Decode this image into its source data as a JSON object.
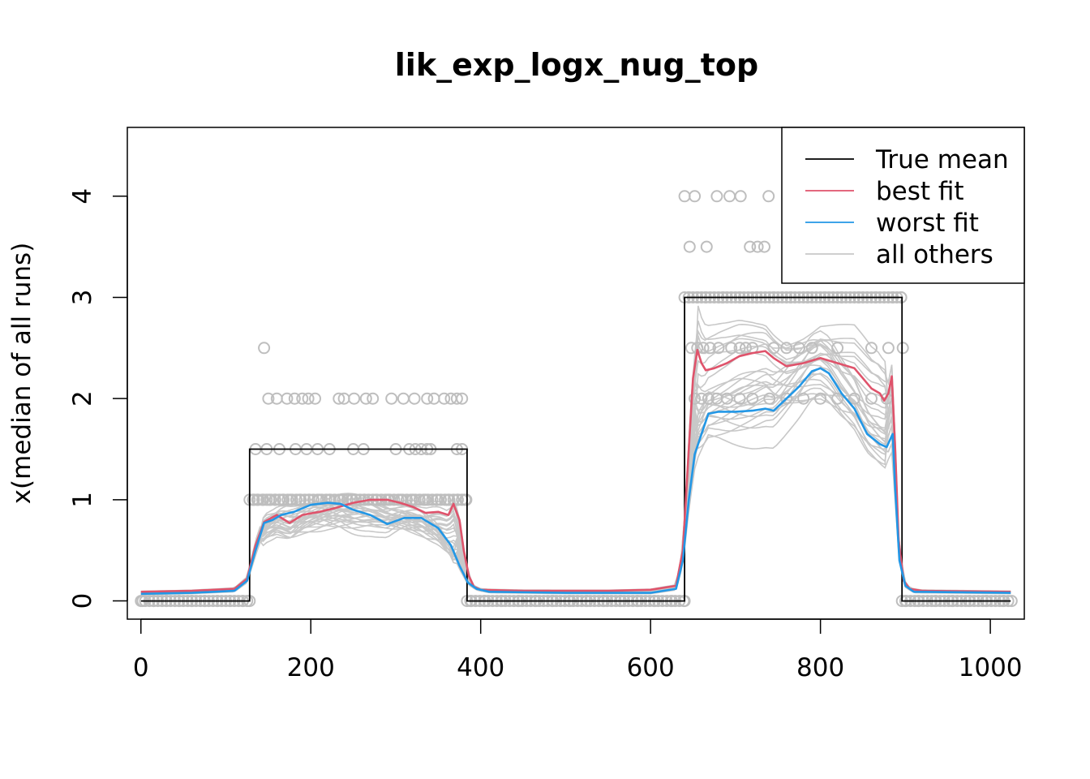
{
  "chart_data": {
    "type": "line",
    "title": "lik_exp_logx_nug_top",
    "xlabel": "",
    "ylabel": "x(median of all runs)",
    "xlim": [
      -16,
      1040
    ],
    "ylim": [
      -0.18,
      4.68
    ],
    "x_ticks": [
      0,
      200,
      400,
      600,
      800,
      1000
    ],
    "y_ticks": [
      0,
      1,
      2,
      3,
      4
    ],
    "legend_position": "top-right",
    "colors": {
      "true_mean": "#000000",
      "best_fit": "#DF536B",
      "worst_fit": "#2297E6",
      "all_others": "#C8C8C8",
      "points": "#BEBEBE"
    },
    "legend": [
      {
        "label": "True mean",
        "color": "#000000"
      },
      {
        "label": "best fit",
        "color": "#DF536B"
      },
      {
        "label": "worst fit",
        "color": "#2297E6"
      },
      {
        "label": "all others",
        "color": "#C8C8C8"
      }
    ],
    "true_mean": {
      "name": "True mean",
      "x": [
        0,
        128,
        128,
        384,
        384,
        640,
        640,
        896,
        896,
        1024
      ],
      "y": [
        0,
        0,
        1.5,
        1.5,
        0,
        0,
        3,
        3,
        0,
        0
      ]
    },
    "best_fit": {
      "name": "best fit",
      "x": [
        0,
        60,
        110,
        125,
        135,
        145,
        160,
        175,
        190,
        210,
        230,
        250,
        270,
        290,
        305,
        320,
        335,
        350,
        362,
        368,
        375,
        380,
        386,
        392,
        400,
        450,
        500,
        550,
        600,
        630,
        638,
        645,
        650,
        655,
        660,
        665,
        675,
        690,
        705,
        720,
        735,
        745,
        760,
        780,
        800,
        820,
        840,
        850,
        860,
        870,
        875,
        880,
        884,
        888,
        892,
        898,
        905,
        920,
        1024
      ],
      "y": [
        0.09,
        0.1,
        0.12,
        0.22,
        0.55,
        0.78,
        0.85,
        0.77,
        0.85,
        0.88,
        0.92,
        0.97,
        1.0,
        1.0,
        0.97,
        0.93,
        0.87,
        0.88,
        0.85,
        0.96,
        0.8,
        0.5,
        0.25,
        0.14,
        0.11,
        0.1,
        0.1,
        0.1,
        0.11,
        0.15,
        0.5,
        1.5,
        2.2,
        2.48,
        2.35,
        2.28,
        2.3,
        2.35,
        2.42,
        2.45,
        2.47,
        2.4,
        2.32,
        2.35,
        2.4,
        2.35,
        2.3,
        2.2,
        2.1,
        2.05,
        1.98,
        2.05,
        2.22,
        1.5,
        0.6,
        0.2,
        0.12,
        0.1,
        0.09
      ]
    },
    "worst_fit": {
      "name": "worst fit",
      "x": [
        0,
        60,
        110,
        125,
        135,
        145,
        155,
        165,
        180,
        200,
        220,
        235,
        250,
        270,
        290,
        310,
        330,
        350,
        365,
        375,
        385,
        395,
        410,
        500,
        600,
        630,
        638,
        645,
        652,
        660,
        668,
        680,
        700,
        720,
        735,
        745,
        760,
        775,
        790,
        800,
        810,
        825,
        840,
        855,
        870,
        878,
        885,
        888,
        893,
        900,
        910,
        1024
      ],
      "y": [
        0.07,
        0.08,
        0.1,
        0.2,
        0.5,
        0.77,
        0.8,
        0.85,
        0.88,
        0.95,
        0.97,
        0.96,
        0.9,
        0.85,
        0.76,
        0.82,
        0.82,
        0.72,
        0.55,
        0.35,
        0.18,
        0.12,
        0.09,
        0.08,
        0.08,
        0.12,
        0.4,
        1.0,
        1.45,
        1.65,
        1.85,
        1.87,
        1.87,
        1.88,
        1.9,
        1.88,
        2.0,
        2.12,
        2.27,
        2.3,
        2.25,
        2.05,
        1.9,
        1.65,
        1.55,
        1.52,
        1.65,
        1.1,
        0.4,
        0.15,
        0.09,
        0.08
      ]
    },
    "points_y": [
      0,
      1,
      1.5,
      2,
      2.5,
      3,
      3.5,
      4,
      4.5
    ],
    "points": {
      "x": [
        2,
        15,
        30,
        45,
        60,
        75,
        90,
        105,
        120,
        128,
        132,
        137,
        144,
        151,
        158,
        167,
        176,
        187,
        198,
        210,
        222,
        235,
        249,
        263,
        277,
        291,
        306,
        320,
        335,
        349,
        362,
        373,
        382,
        135,
        148,
        163,
        182,
        195,
        208,
        222,
        250,
        262,
        300,
        316,
        323,
        330,
        337,
        341,
        372,
        378,
        150,
        160,
        172,
        181,
        190,
        197,
        205,
        233,
        239,
        251,
        265,
        273,
        295,
        309,
        322,
        337,
        345,
        357,
        365,
        372,
        378,
        145,
        388,
        405,
        425,
        445,
        465,
        485,
        505,
        525,
        545,
        565,
        585,
        605,
        625,
        640,
        900,
        915,
        935,
        955,
        975,
        995,
        1015,
        1025,
        645,
        655,
        665,
        685,
        705,
        725,
        745,
        765,
        785,
        805,
        825,
        845,
        865,
        885,
        895,
        648,
        655,
        662,
        670,
        680,
        695,
        705,
        712,
        720,
        745,
        760,
        775,
        790,
        820,
        860,
        880,
        897,
        652,
        660,
        668,
        678,
        690,
        705,
        720,
        740,
        760,
        780,
        800,
        820,
        840,
        860,
        878,
        646,
        666,
        717,
        726,
        734,
        640,
        652,
        678,
        693,
        706,
        739,
        777,
        765
      ],
      "y": [
        0,
        0,
        0,
        0,
        0,
        0,
        0,
        0,
        0,
        0,
        1,
        1,
        1,
        1,
        1,
        1,
        1,
        1,
        1,
        1,
        1,
        1,
        1,
        1,
        1,
        1,
        1,
        1,
        1,
        1,
        1,
        1,
        1,
        1.5,
        1.5,
        1.5,
        1.5,
        1.5,
        1.5,
        1.5,
        1.5,
        1.5,
        1.5,
        1.5,
        1.5,
        1.5,
        1.5,
        1.5,
        1.5,
        1.5,
        2,
        2,
        2,
        2,
        2,
        2,
        2,
        2,
        2,
        2,
        2,
        2,
        2,
        2,
        2,
        2,
        2,
        2,
        2,
        2,
        2,
        2.5,
        0,
        0,
        0,
        0,
        0,
        0,
        0,
        0,
        0,
        0,
        0,
        0,
        0,
        0,
        0,
        0,
        0,
        0,
        0,
        0,
        0,
        0,
        3,
        3,
        3,
        3,
        3,
        3,
        3,
        3,
        3,
        3,
        3,
        3,
        3,
        3,
        3,
        2.5,
        2.5,
        2.5,
        2.5,
        2.5,
        2.5,
        2.5,
        2.5,
        2.5,
        2.5,
        2.5,
        2.5,
        2.5,
        2.5,
        2.5,
        2.5,
        2.5,
        2,
        2,
        2,
        2,
        2,
        2,
        2,
        2,
        2,
        2,
        2,
        2,
        2,
        2,
        2,
        3.5,
        3.5,
        3.5,
        3.5,
        3.5,
        4,
        4,
        4,
        4,
        4,
        4,
        4,
        4.5
      ]
    }
  }
}
